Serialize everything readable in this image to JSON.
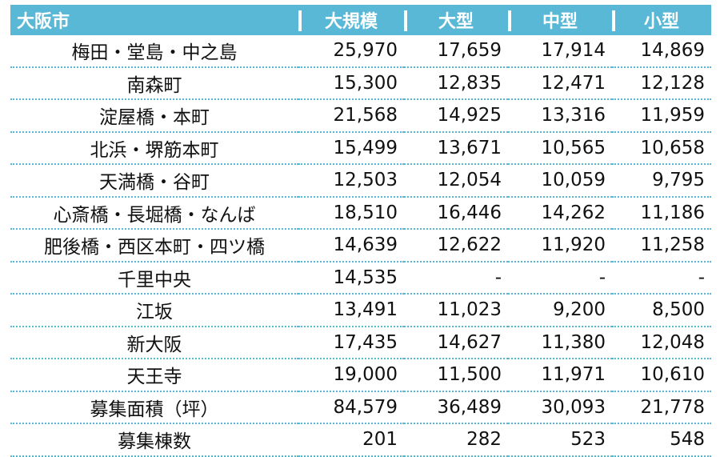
{
  "table": {
    "headers": [
      "大阪市",
      "大規模",
      "大型",
      "中型",
      "小型"
    ],
    "rows": [
      [
        "梅田・堂島・中之島",
        "25,970",
        "17,659",
        "17,914",
        "14,869"
      ],
      [
        "南森町",
        "15,300",
        "12,835",
        "12,471",
        "12,128"
      ],
      [
        "淀屋橋・本町",
        "21,568",
        "14,925",
        "13,316",
        "11,959"
      ],
      [
        "北浜・堺筋本町",
        "15,499",
        "13,671",
        "10,565",
        "10,658"
      ],
      [
        "天満橋・谷町",
        "12,503",
        "12,054",
        "10,059",
        "9,795"
      ],
      [
        "心斎橋・長堀橋・なんば",
        "18,510",
        "16,446",
        "14,262",
        "11,186"
      ],
      [
        "肥後橋・西区本町・四ツ橋",
        "14,639",
        "12,622",
        "11,920",
        "11,258"
      ],
      [
        "千里中央",
        "14,535",
        "-",
        "-",
        "-"
      ],
      [
        "江坂",
        "13,491",
        "11,023",
        "9,200",
        "8,500"
      ],
      [
        "新大阪",
        "17,435",
        "14,627",
        "11,380",
        "12,048"
      ],
      [
        "天王寺",
        "19,000",
        "11,500",
        "11,971",
        "10,610"
      ],
      [
        "募集面積（坪）",
        "84,579",
        "36,489",
        "30,093",
        "21,778"
      ],
      [
        "募集棟数",
        "201",
        "282",
        "523",
        "548"
      ]
    ]
  },
  "colors": {
    "header_bg": "#59b8d6",
    "header_text": "#ffffff",
    "divider": "#59b8d6"
  }
}
